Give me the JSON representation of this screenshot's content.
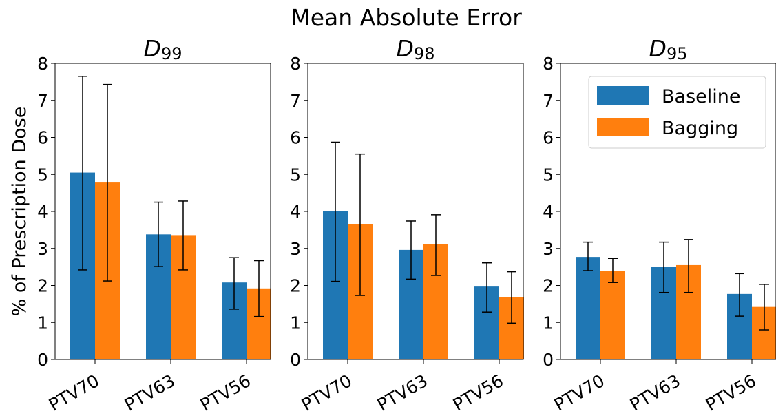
{
  "figure": {
    "title": "Mean Absolute Error",
    "ylabel": "% of Prescription Dose"
  },
  "colors": {
    "Baseline": "#1f77b4",
    "Bagging": "#ff7f0e"
  },
  "legend": {
    "position": "top-right",
    "panel": 2,
    "entries": [
      "Baseline",
      "Bagging"
    ]
  },
  "chart_data": [
    {
      "type": "bar",
      "title_main": "D",
      "title_sub": "99",
      "categories": [
        "PTV70",
        "PTV63",
        "PTV56"
      ],
      "ylim": [
        0,
        8
      ],
      "yticks": [
        0,
        1,
        2,
        3,
        4,
        5,
        6,
        7,
        8
      ],
      "grid": false,
      "series": [
        {
          "name": "Baseline",
          "values": [
            5.05,
            3.38,
            2.08
          ],
          "err_low": [
            2.42,
            2.51,
            1.36
          ],
          "err_high": [
            7.65,
            4.25,
            2.75
          ]
        },
        {
          "name": "Bagging",
          "values": [
            4.78,
            3.36,
            1.92
          ],
          "err_low": [
            2.12,
            2.42,
            1.16
          ],
          "err_high": [
            7.43,
            4.28,
            2.67
          ]
        }
      ]
    },
    {
      "type": "bar",
      "title_main": "D",
      "title_sub": "98",
      "categories": [
        "PTV70",
        "PTV63",
        "PTV56"
      ],
      "ylim": [
        0,
        8
      ],
      "yticks": [
        0,
        1,
        2,
        3,
        4,
        5,
        6,
        7,
        8
      ],
      "grid": false,
      "series": [
        {
          "name": "Baseline",
          "values": [
            4.0,
            2.96,
            1.97
          ],
          "err_low": [
            2.11,
            2.17,
            1.28
          ],
          "err_high": [
            5.87,
            3.74,
            2.61
          ]
        },
        {
          "name": "Bagging",
          "values": [
            3.65,
            3.11,
            1.68
          ],
          "err_low": [
            1.73,
            2.27,
            0.98
          ],
          "err_high": [
            5.55,
            3.91,
            2.37
          ]
        }
      ]
    },
    {
      "type": "bar",
      "title_main": "D",
      "title_sub": "95",
      "categories": [
        "PTV70",
        "PTV63",
        "PTV56"
      ],
      "ylim": [
        0,
        8
      ],
      "yticks": [
        0,
        1,
        2,
        3,
        4,
        5,
        6,
        7,
        8
      ],
      "grid": false,
      "series": [
        {
          "name": "Baseline",
          "values": [
            2.77,
            2.5,
            1.77
          ],
          "err_low": [
            2.4,
            1.81,
            1.17
          ],
          "err_high": [
            3.17,
            3.17,
            2.32
          ]
        },
        {
          "name": "Bagging",
          "values": [
            2.4,
            2.55,
            1.42
          ],
          "err_low": [
            2.08,
            1.81,
            0.8
          ],
          "err_high": [
            2.73,
            3.24,
            2.03
          ]
        }
      ]
    }
  ]
}
